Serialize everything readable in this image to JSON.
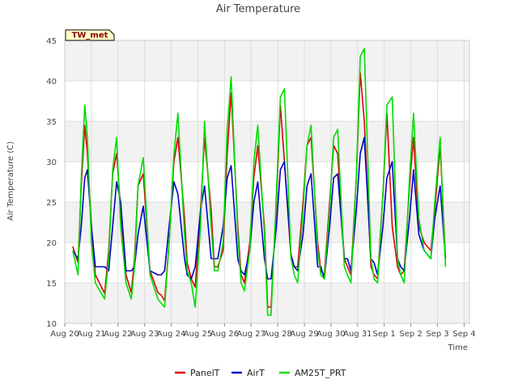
{
  "chart_data": {
    "type": "line",
    "title": "Air Temperature",
    "xlabel": "Time",
    "ylabel": "Air Temperature (C)",
    "badge": "TW_met",
    "ylim": [
      10,
      45
    ],
    "yticks": [
      10,
      15,
      20,
      25,
      30,
      35,
      40,
      45
    ],
    "xlim": [
      0,
      15.2
    ],
    "xticks": [
      {
        "v": 0,
        "label": "Aug 20"
      },
      {
        "v": 1,
        "label": "Aug 21"
      },
      {
        "v": 2,
        "label": "Aug 22"
      },
      {
        "v": 3,
        "label": "Aug 23"
      },
      {
        "v": 4,
        "label": "Aug 24"
      },
      {
        "v": 5,
        "label": "Aug 25"
      },
      {
        "v": 6,
        "label": "Aug 26"
      },
      {
        "v": 7,
        "label": "Aug 27"
      },
      {
        "v": 8,
        "label": "Aug 28"
      },
      {
        "v": 9,
        "label": "Aug 29"
      },
      {
        "v": 10,
        "label": "Aug 30"
      },
      {
        "v": 11,
        "label": "Aug 31"
      },
      {
        "v": 12,
        "label": "Sep 1"
      },
      {
        "v": 13,
        "label": "Sep 2"
      },
      {
        "v": 14,
        "label": "Sep 3"
      },
      {
        "v": 15,
        "label": "Sep 4"
      }
    ],
    "grid": true,
    "legend_position": "bottom",
    "series": [
      {
        "name": "PanelT",
        "color": "#dd0000",
        "x": [
          0.3,
          0.5,
          0.62,
          0.75,
          0.85,
          1.0,
          1.15,
          1.5,
          1.65,
          1.8,
          1.95,
          2.1,
          2.3,
          2.5,
          2.62,
          2.75,
          2.95,
          3.2,
          3.5,
          3.62,
          3.75,
          3.92,
          4.1,
          4.25,
          4.5,
          4.6,
          4.75,
          4.9,
          5.1,
          5.25,
          5.5,
          5.62,
          5.75,
          5.95,
          6.1,
          6.25,
          6.5,
          6.62,
          6.75,
          6.95,
          7.1,
          7.25,
          7.5,
          7.62,
          7.75,
          7.95,
          8.1,
          8.25,
          8.5,
          8.62,
          8.75,
          8.95,
          9.1,
          9.25,
          9.5,
          9.62,
          9.75,
          9.95,
          10.1,
          10.25,
          10.5,
          10.62,
          10.75,
          10.95,
          11.1,
          11.25,
          11.5,
          11.62,
          11.75,
          11.95,
          12.1,
          12.3,
          12.5,
          12.62,
          12.75,
          12.95,
          13.1,
          13.3,
          13.5,
          13.62,
          13.75,
          13.9,
          14.1,
          14.3
        ],
        "y": [
          19.5,
          17.5,
          27,
          34.5,
          31,
          22,
          16,
          13.7,
          19,
          28.5,
          31,
          24,
          16,
          13.8,
          18,
          27,
          28.5,
          16.5,
          13.8,
          13.5,
          12.8,
          20,
          30,
          33,
          23,
          17.5,
          15.5,
          14.5,
          24,
          33,
          24,
          17,
          17,
          19,
          31,
          38.5,
          22,
          16,
          15,
          20,
          28,
          32,
          22,
          12,
          12,
          25,
          37,
          30,
          18,
          17,
          17,
          25,
          32,
          33,
          20,
          16.5,
          16,
          25,
          32,
          31,
          18,
          17,
          16,
          28,
          41,
          35,
          17,
          16,
          15.5,
          26,
          36,
          22,
          17,
          16,
          16.5,
          27,
          33,
          22,
          20,
          19.5,
          19,
          24,
          32,
          18
        ]
      },
      {
        "name": "AirT",
        "color": "#0000cc",
        "x": [
          0.3,
          0.5,
          0.62,
          0.75,
          0.85,
          1.0,
          1.15,
          1.5,
          1.65,
          1.8,
          1.95,
          2.1,
          2.3,
          2.5,
          2.62,
          2.75,
          2.95,
          3.2,
          3.5,
          3.62,
          3.75,
          3.92,
          4.1,
          4.25,
          4.5,
          4.6,
          4.75,
          4.9,
          5.1,
          5.25,
          5.5,
          5.62,
          5.75,
          5.95,
          6.1,
          6.25,
          6.5,
          6.62,
          6.75,
          6.95,
          7.1,
          7.25,
          7.5,
          7.62,
          7.75,
          7.95,
          8.1,
          8.25,
          8.5,
          8.62,
          8.75,
          8.95,
          9.1,
          9.25,
          9.5,
          9.62,
          9.75,
          9.95,
          10.1,
          10.25,
          10.5,
          10.62,
          10.75,
          10.95,
          11.1,
          11.25,
          11.5,
          11.62,
          11.75,
          11.95,
          12.1,
          12.3,
          12.5,
          12.62,
          12.75,
          12.95,
          13.1,
          13.3,
          13.5,
          13.62,
          13.75,
          13.9,
          14.1,
          14.3
        ],
        "y": [
          19,
          18,
          22,
          28,
          29,
          22,
          17,
          17,
          16.5,
          22,
          27.5,
          25,
          16.5,
          16.5,
          17,
          21,
          24.5,
          16.5,
          16,
          16,
          16.5,
          22,
          27.5,
          26,
          18,
          16,
          15.5,
          17,
          24,
          27,
          18,
          18,
          18,
          22,
          28,
          29.5,
          18,
          16.5,
          16,
          19,
          25,
          27.5,
          18,
          15.5,
          15.5,
          22,
          29,
          30,
          18.5,
          17,
          16.5,
          21,
          27,
          28.5,
          17,
          17,
          15.5,
          22,
          28,
          28.5,
          18,
          18,
          16.5,
          24,
          31,
          33,
          18,
          17.5,
          16,
          22,
          28,
          30,
          18,
          17,
          16.5,
          23,
          29,
          21,
          19,
          18.5,
          18,
          23,
          27,
          18
        ]
      },
      {
        "name": "AM25T_PRT",
        "color": "#00dd00",
        "x": [
          0.3,
          0.5,
          0.62,
          0.75,
          0.85,
          1.0,
          1.15,
          1.5,
          1.65,
          1.8,
          1.95,
          2.1,
          2.3,
          2.5,
          2.62,
          2.75,
          2.95,
          3.2,
          3.5,
          3.62,
          3.75,
          3.92,
          4.1,
          4.25,
          4.5,
          4.6,
          4.75,
          4.9,
          5.1,
          5.25,
          5.5,
          5.62,
          5.75,
          5.95,
          6.1,
          6.25,
          6.5,
          6.62,
          6.75,
          6.95,
          7.1,
          7.25,
          7.5,
          7.62,
          7.75,
          7.95,
          8.1,
          8.25,
          8.5,
          8.62,
          8.75,
          8.95,
          9.1,
          9.25,
          9.5,
          9.62,
          9.75,
          9.95,
          10.1,
          10.25,
          10.5,
          10.62,
          10.75,
          10.95,
          11.1,
          11.25,
          11.5,
          11.62,
          11.75,
          11.95,
          12.1,
          12.3,
          12.5,
          12.62,
          12.75,
          12.95,
          13.1,
          13.3,
          13.5,
          13.62,
          13.75,
          13.9,
          14.1,
          14.3
        ],
        "y": [
          19,
          16,
          28,
          37,
          33,
          20,
          15,
          13,
          18,
          29,
          33,
          22,
          15,
          13,
          17,
          27,
          30.5,
          16,
          13,
          12.5,
          12,
          20,
          31,
          36,
          21,
          16.5,
          15,
          12,
          22,
          35,
          22,
          16.5,
          16.5,
          20,
          34,
          40.5,
          21,
          15,
          14,
          19,
          30,
          34.5,
          21,
          11,
          11,
          26,
          38,
          39,
          18,
          16,
          15,
          24,
          32,
          34.5,
          19,
          16,
          15.5,
          24,
          33,
          34,
          17,
          16,
          15,
          28,
          43,
          44,
          18,
          15.5,
          15,
          26,
          37,
          38,
          18,
          16,
          15,
          28,
          36,
          23,
          19,
          18.5,
          18,
          25,
          33,
          17
        ]
      }
    ]
  }
}
